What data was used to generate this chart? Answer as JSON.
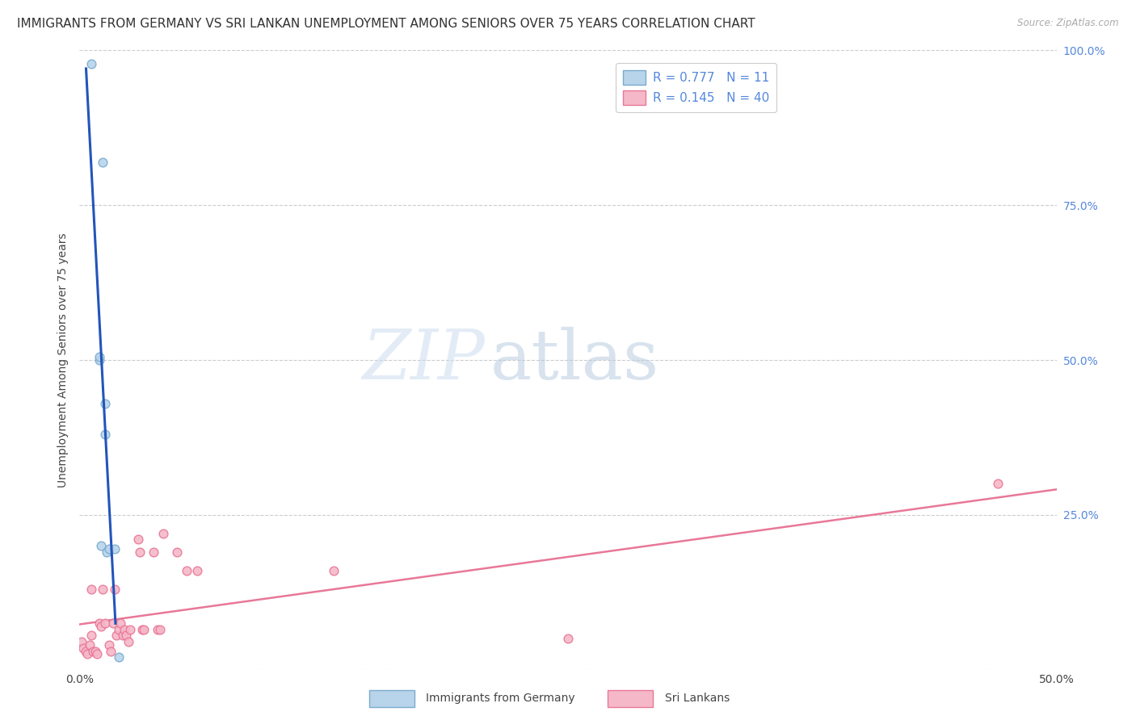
{
  "title": "IMMIGRANTS FROM GERMANY VS SRI LANKAN UNEMPLOYMENT AMONG SENIORS OVER 75 YEARS CORRELATION CHART",
  "source": "Source: ZipAtlas.com",
  "ylabel": "Unemployment Among Seniors over 75 years",
  "xlim": [
    0,
    0.5
  ],
  "ylim": [
    0,
    1.0
  ],
  "germany_R": 0.777,
  "germany_N": 11,
  "srilanka_R": 0.145,
  "srilanka_N": 40,
  "germany_color": "#b8d4ea",
  "germany_edge_color": "#7aabce",
  "srilanka_color": "#f5b8c8",
  "srilanka_edge_color": "#e87898",
  "germany_line_color": "#2255bb",
  "srilanka_line_color": "#e87898",
  "germany_dots_x": [
    0.006,
    0.01,
    0.01,
    0.011,
    0.012,
    0.013,
    0.013,
    0.014,
    0.015,
    0.018,
    0.02
  ],
  "germany_dots_y": [
    0.978,
    0.5,
    0.505,
    0.2,
    0.82,
    0.43,
    0.38,
    0.19,
    0.195,
    0.195,
    0.02
  ],
  "srilanka_dots_x": [
    0.001,
    0.002,
    0.003,
    0.004,
    0.005,
    0.006,
    0.006,
    0.007,
    0.008,
    0.009,
    0.01,
    0.011,
    0.012,
    0.013,
    0.015,
    0.016,
    0.017,
    0.018,
    0.019,
    0.02,
    0.021,
    0.022,
    0.023,
    0.024,
    0.025,
    0.026,
    0.03,
    0.031,
    0.032,
    0.033,
    0.038,
    0.04,
    0.041,
    0.043,
    0.05,
    0.055,
    0.06,
    0.13,
    0.25,
    0.47
  ],
  "srilanka_dots_y": [
    0.045,
    0.035,
    0.03,
    0.025,
    0.04,
    0.13,
    0.055,
    0.03,
    0.03,
    0.025,
    0.075,
    0.07,
    0.13,
    0.075,
    0.04,
    0.03,
    0.075,
    0.13,
    0.055,
    0.065,
    0.075,
    0.055,
    0.065,
    0.055,
    0.045,
    0.065,
    0.21,
    0.19,
    0.065,
    0.065,
    0.19,
    0.065,
    0.065,
    0.22,
    0.19,
    0.16,
    0.16,
    0.16,
    0.05,
    0.3
  ],
  "watermark_zip": "ZIP",
  "watermark_atlas": "atlas",
  "background_color": "#ffffff",
  "grid_color": "#cccccc",
  "title_fontsize": 11,
  "axis_label_fontsize": 10,
  "tick_fontsize": 10,
  "legend_fontsize": 11,
  "marker_size": 60,
  "right_tick_color": "#5588dd"
}
